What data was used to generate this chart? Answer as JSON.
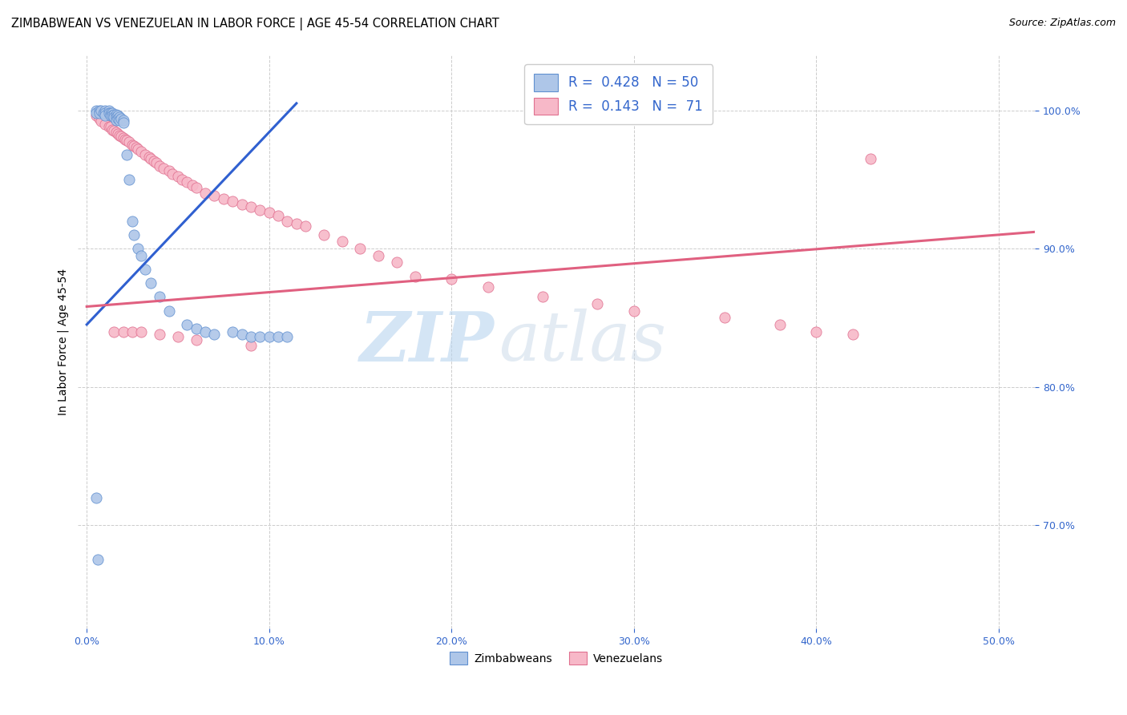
{
  "title": "ZIMBABWEAN VS VENEZUELAN IN LABOR FORCE | AGE 45-54 CORRELATION CHART",
  "source": "Source: ZipAtlas.com",
  "ylabel": "In Labor Force | Age 45-54",
  "x_tick_labels": [
    "0.0%",
    "10.0%",
    "20.0%",
    "30.0%",
    "40.0%",
    "50.0%"
  ],
  "x_tick_values": [
    0.0,
    0.1,
    0.2,
    0.3,
    0.4,
    0.5
  ],
  "y_tick_labels": [
    "70.0%",
    "80.0%",
    "90.0%",
    "100.0%"
  ],
  "y_tick_values": [
    0.7,
    0.8,
    0.9,
    1.0
  ],
  "xlim": [
    -0.005,
    0.52
  ],
  "ylim": [
    0.625,
    1.04
  ],
  "legend_labels": [
    "Zimbabweans",
    "Venezuelans"
  ],
  "legend_R": [
    "R =  0.428",
    "R =  0.143"
  ],
  "legend_N": [
    "N = 50",
    "N =  71"
  ],
  "zim_color": "#aec6e8",
  "ven_color": "#f7b8c8",
  "zim_edge_color": "#6090d0",
  "ven_edge_color": "#e07090",
  "zim_line_color": "#3060d0",
  "ven_line_color": "#e06080",
  "title_fontsize": 10.5,
  "source_fontsize": 9,
  "axis_label_fontsize": 10,
  "tick_fontsize": 9,
  "legend_fontsize": 12,
  "watermark_top": "ZIP",
  "watermark_bot": "atlas",
  "background_color": "#ffffff",
  "zim_scatter_x": [
    0.005,
    0.005,
    0.007,
    0.007,
    0.008,
    0.009,
    0.01,
    0.01,
    0.01,
    0.012,
    0.012,
    0.013,
    0.013,
    0.014,
    0.014,
    0.015,
    0.015,
    0.016,
    0.016,
    0.016,
    0.017,
    0.017,
    0.018,
    0.018,
    0.019,
    0.02,
    0.02,
    0.022,
    0.023,
    0.025,
    0.026,
    0.028,
    0.03,
    0.032,
    0.035,
    0.04,
    0.045,
    0.055,
    0.06,
    0.065,
    0.07,
    0.08,
    0.085,
    0.09,
    0.095,
    0.1,
    0.105,
    0.11,
    0.005,
    0.006
  ],
  "zim_scatter_y": [
    1.0,
    0.998,
    1.0,
    0.998,
    1.0,
    0.998,
    1.0,
    0.998,
    0.996,
    1.0,
    0.998,
    0.998,
    0.996,
    0.998,
    0.996,
    0.997,
    0.995,
    0.997,
    0.995,
    0.993,
    0.996,
    0.994,
    0.995,
    0.993,
    0.994,
    0.993,
    0.991,
    0.968,
    0.95,
    0.92,
    0.91,
    0.9,
    0.895,
    0.885,
    0.875,
    0.865,
    0.855,
    0.845,
    0.842,
    0.84,
    0.838,
    0.84,
    0.838,
    0.836,
    0.836,
    0.836,
    0.836,
    0.836,
    0.72,
    0.675
  ],
  "ven_scatter_x": [
    0.005,
    0.007,
    0.008,
    0.01,
    0.012,
    0.013,
    0.014,
    0.015,
    0.016,
    0.017,
    0.018,
    0.019,
    0.02,
    0.021,
    0.022,
    0.023,
    0.025,
    0.026,
    0.027,
    0.028,
    0.03,
    0.032,
    0.034,
    0.035,
    0.037,
    0.038,
    0.04,
    0.042,
    0.045,
    0.047,
    0.05,
    0.052,
    0.055,
    0.058,
    0.06,
    0.065,
    0.07,
    0.075,
    0.08,
    0.085,
    0.09,
    0.095,
    0.1,
    0.105,
    0.11,
    0.115,
    0.12,
    0.13,
    0.14,
    0.15,
    0.16,
    0.17,
    0.18,
    0.2,
    0.22,
    0.25,
    0.28,
    0.3,
    0.35,
    0.38,
    0.4,
    0.42,
    0.015,
    0.02,
    0.025,
    0.03,
    0.04,
    0.05,
    0.06,
    0.09,
    0.43
  ],
  "ven_scatter_y": [
    0.996,
    0.994,
    0.992,
    0.99,
    0.988,
    0.988,
    0.986,
    0.985,
    0.984,
    0.983,
    0.982,
    0.981,
    0.98,
    0.979,
    0.978,
    0.977,
    0.975,
    0.974,
    0.973,
    0.972,
    0.97,
    0.968,
    0.966,
    0.965,
    0.963,
    0.962,
    0.96,
    0.958,
    0.956,
    0.954,
    0.952,
    0.95,
    0.948,
    0.946,
    0.944,
    0.94,
    0.938,
    0.936,
    0.934,
    0.932,
    0.93,
    0.928,
    0.926,
    0.924,
    0.92,
    0.918,
    0.916,
    0.91,
    0.905,
    0.9,
    0.895,
    0.89,
    0.88,
    0.878,
    0.872,
    0.865,
    0.86,
    0.855,
    0.85,
    0.845,
    0.84,
    0.838,
    0.84,
    0.84,
    0.84,
    0.84,
    0.838,
    0.836,
    0.834,
    0.83,
    0.965
  ],
  "zim_line_x": [
    0.0,
    0.115
  ],
  "zim_line_y": [
    0.845,
    1.005
  ],
  "ven_line_x": [
    0.0,
    0.52
  ],
  "ven_line_y": [
    0.858,
    0.912
  ]
}
